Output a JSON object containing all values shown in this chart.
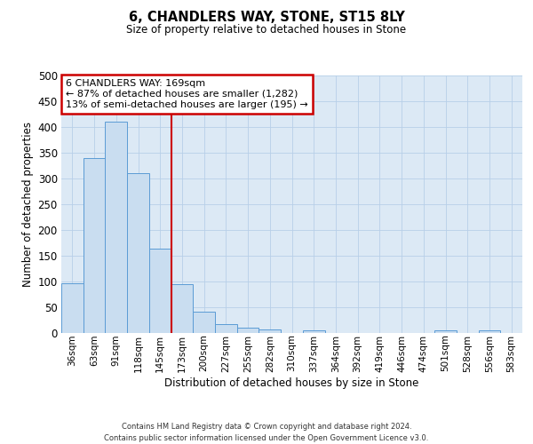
{
  "title": "6, CHANDLERS WAY, STONE, ST15 8LY",
  "subtitle": "Size of property relative to detached houses in Stone",
  "xlabel": "Distribution of detached houses by size in Stone",
  "ylabel": "Number of detached properties",
  "bar_labels": [
    "36sqm",
    "63sqm",
    "91sqm",
    "118sqm",
    "145sqm",
    "173sqm",
    "200sqm",
    "227sqm",
    "255sqm",
    "282sqm",
    "310sqm",
    "337sqm",
    "364sqm",
    "392sqm",
    "419sqm",
    "446sqm",
    "474sqm",
    "501sqm",
    "528sqm",
    "556sqm",
    "583sqm"
  ],
  "bar_values": [
    97,
    340,
    411,
    310,
    164,
    95,
    42,
    17,
    11,
    7,
    0,
    5,
    0,
    0,
    0,
    0,
    0,
    5,
    0,
    5,
    0
  ],
  "bar_color": "#c9ddf0",
  "bar_edge_color": "#5b9bd5",
  "vline_index": 5,
  "vline_color": "#cc0000",
  "annotation_line1": "6 CHANDLERS WAY: 169sqm",
  "annotation_line2": "← 87% of detached houses are smaller (1,282)",
  "annotation_line3": "13% of semi-detached houses are larger (195) →",
  "annotation_box_color": "#cc0000",
  "ylim": [
    0,
    500
  ],
  "yticks": [
    0,
    50,
    100,
    150,
    200,
    250,
    300,
    350,
    400,
    450,
    500
  ],
  "footer_text": "Contains HM Land Registry data © Crown copyright and database right 2024.\nContains public sector information licensed under the Open Government Licence v3.0.",
  "bg_color": "#ffffff",
  "plot_bg_color": "#dce9f5",
  "grid_color": "#b8cfe8"
}
